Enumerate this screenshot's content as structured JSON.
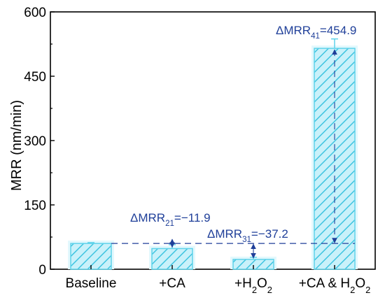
{
  "chart_data": {
    "type": "bar",
    "categories": [
      "Baseline",
      "+CA",
      "+H2O2",
      "+CA & H2O2"
    ],
    "category_labels": [
      {
        "parts": [
          {
            "t": "Baseline"
          }
        ]
      },
      {
        "parts": [
          {
            "t": "+CA"
          }
        ]
      },
      {
        "parts": [
          {
            "t": "+H"
          },
          {
            "t": "2",
            "sub": true
          },
          {
            "t": "O"
          },
          {
            "t": "2",
            "sub": true
          }
        ]
      },
      {
        "parts": [
          {
            "t": "+CA & H"
          },
          {
            "t": "2",
            "sub": true
          },
          {
            "t": "O"
          },
          {
            "t": "2",
            "sub": true
          }
        ]
      }
    ],
    "values": [
      60.1,
      48.2,
      22.9,
      515.0
    ],
    "errors": [
      2,
      9,
      5,
      22
    ],
    "title": "",
    "xlabel": "",
    "ylabel": "MRR (nm/min)",
    "ylim": [
      0,
      600
    ],
    "yticks": [
      0,
      150,
      300,
      450,
      600
    ],
    "grid": false,
    "legend": "none",
    "bar_fill": "#c9f1fa",
    "bar_stroke": "#5fd3ea",
    "bar_hatch_color": "#3fc4e0",
    "bar_halo": "#e3f8fd",
    "annotation_color": "#1f3f99",
    "baseline_reference_value": 60.1,
    "annotations": [
      {
        "id": "dmrr21",
        "target": 1,
        "parts": [
          {
            "t": "ΔMRR"
          },
          {
            "t": "21",
            "sub": true
          },
          {
            "t": "=−11.9"
          }
        ]
      },
      {
        "id": "dmrr31",
        "target": 2,
        "parts": [
          {
            "t": "ΔMRR"
          },
          {
            "t": "31",
            "sub": true
          },
          {
            "t": "=−37.2"
          }
        ]
      },
      {
        "id": "dmrr41",
        "target": 3,
        "parts": [
          {
            "t": "ΔMRR"
          },
          {
            "t": "41",
            "sub": true
          },
          {
            "t": "=454.9"
          }
        ]
      }
    ]
  }
}
